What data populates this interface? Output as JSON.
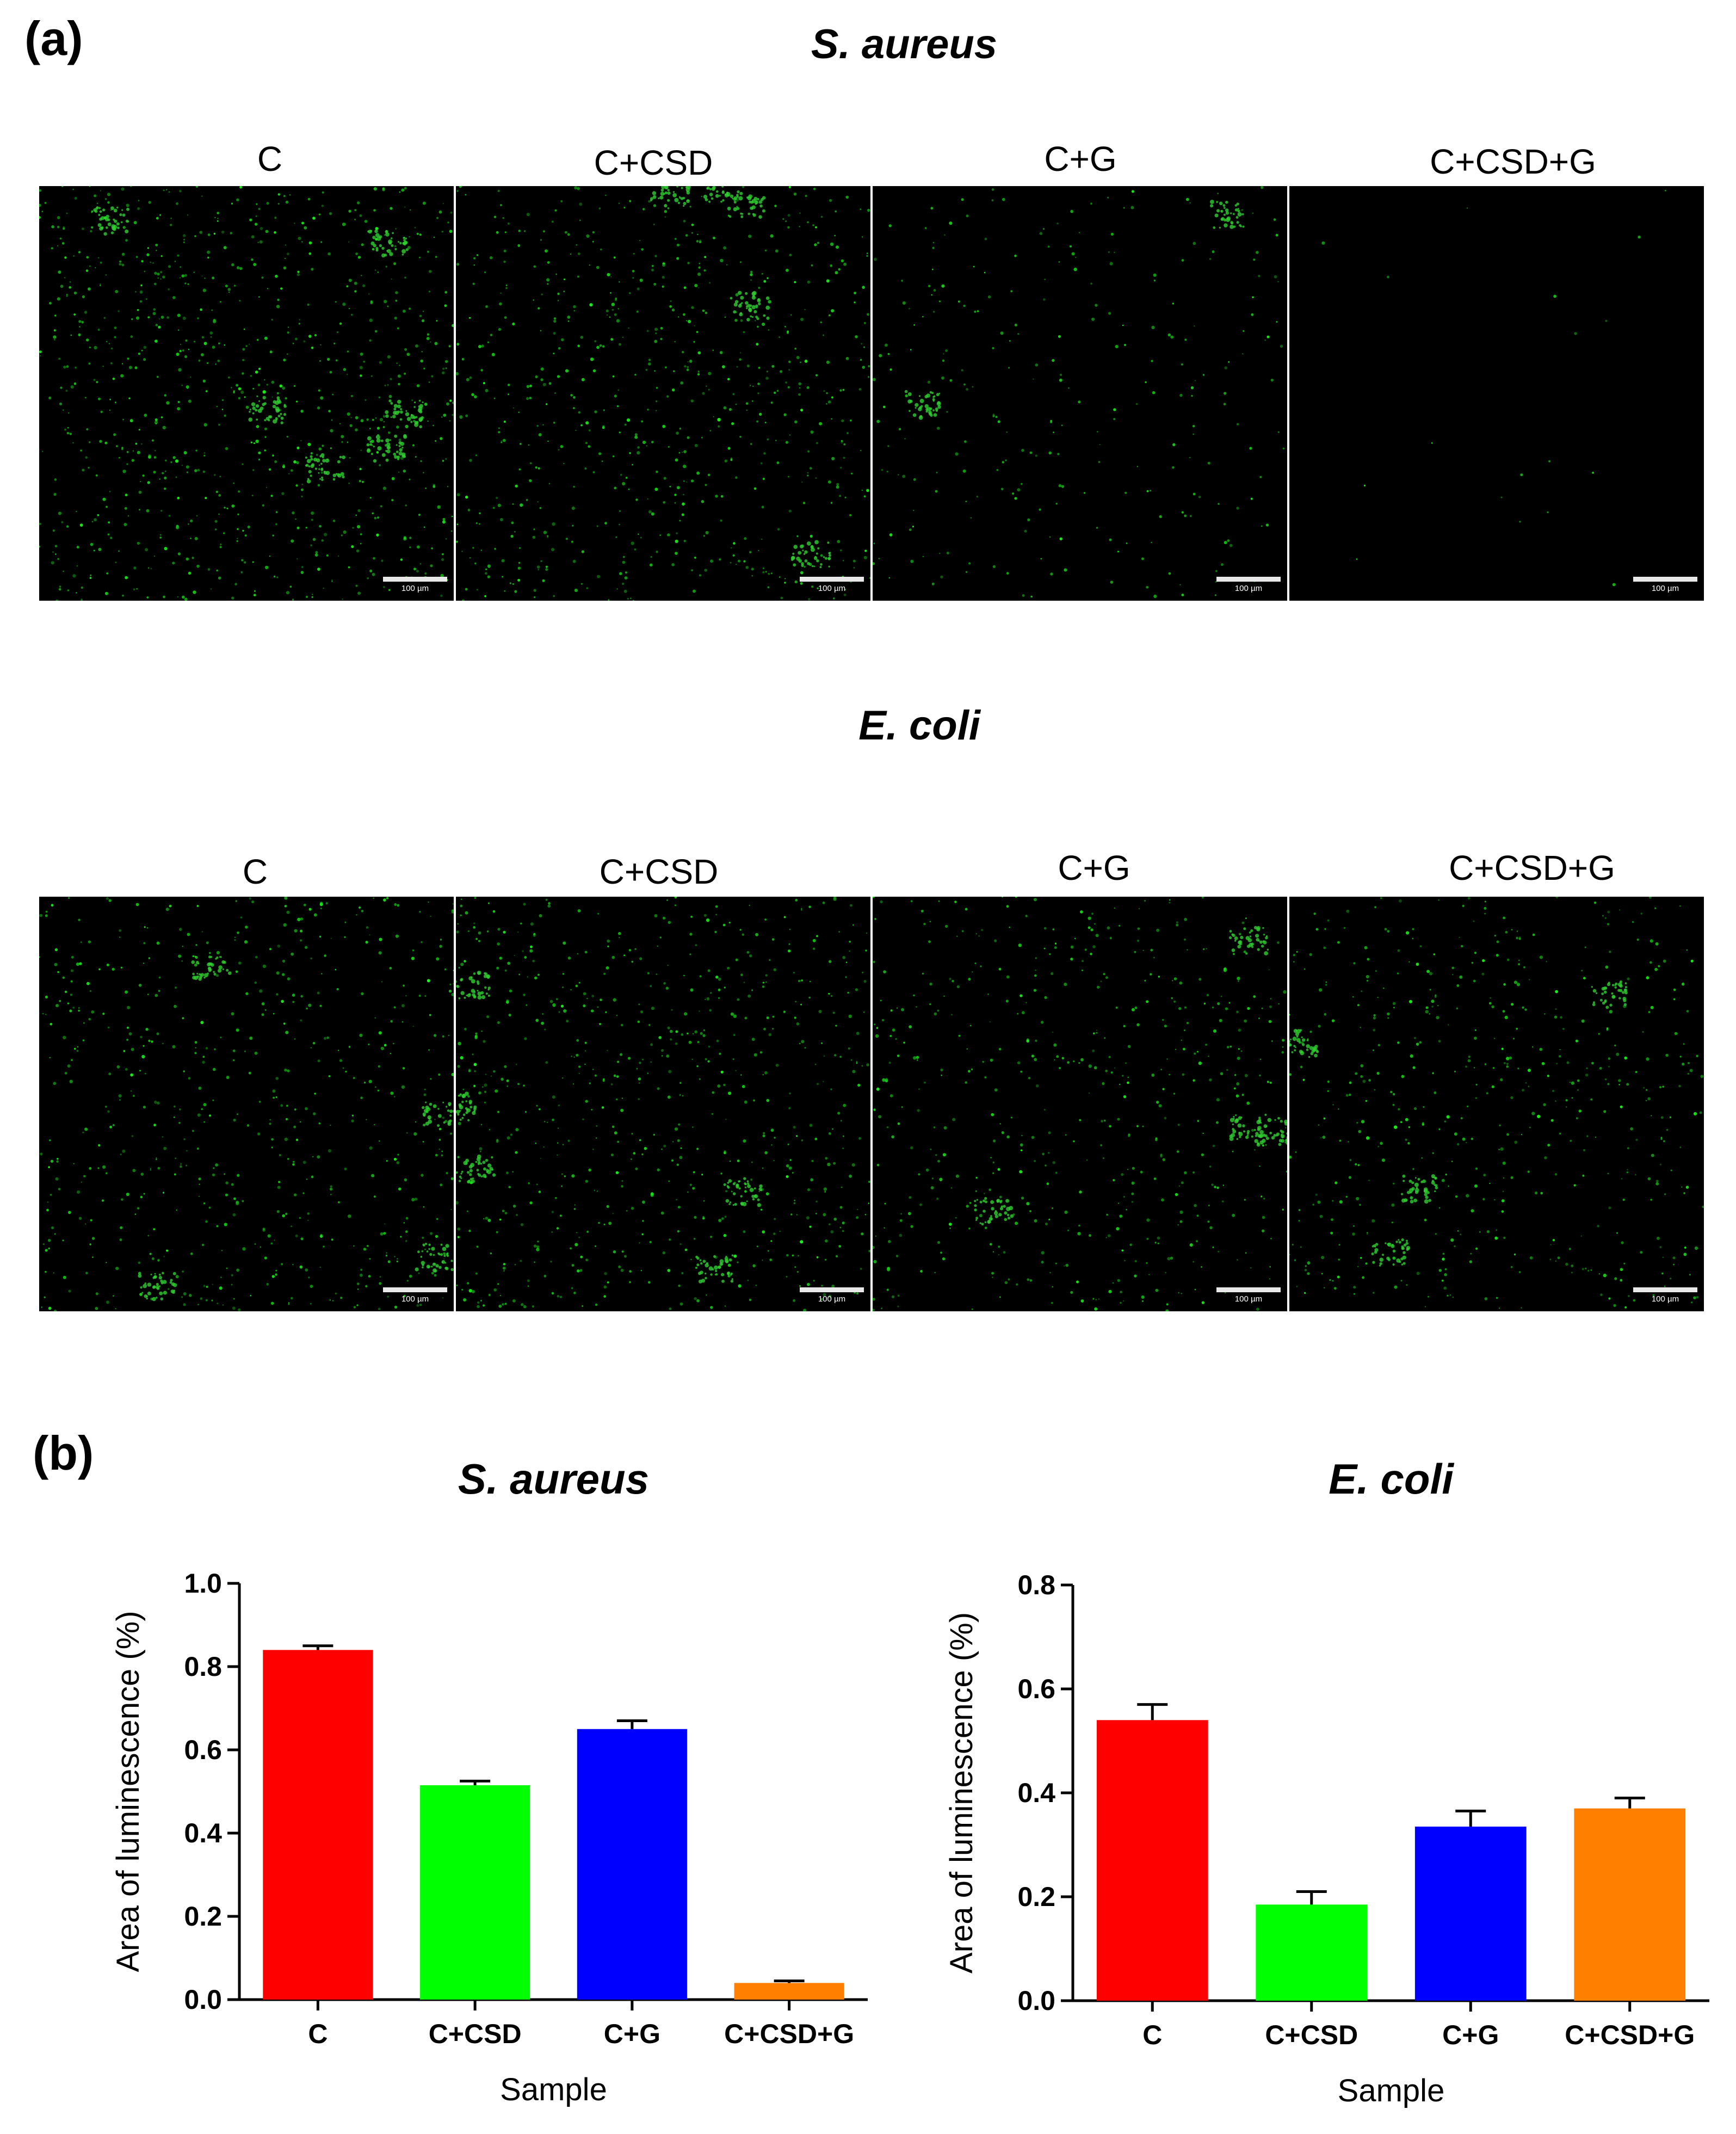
{
  "panel_a": {
    "label": "(a)",
    "rows": [
      {
        "organism": "S. aureus",
        "titles": [
          "C",
          "C+CSD",
          "C+G",
          "C+CSD+G"
        ],
        "density": [
          1.0,
          0.8,
          0.3,
          0.02
        ],
        "scale_label": "100 µm"
      },
      {
        "organism": "E. coli",
        "titles": [
          "C",
          "C+CSD",
          "C+G",
          "C+CSD+G"
        ],
        "density": [
          0.7,
          0.8,
          0.6,
          0.6
        ],
        "scale_label": "100 µm"
      }
    ]
  },
  "panel_b": {
    "label": "(b)"
  },
  "chart_data": [
    {
      "type": "bar",
      "title": "S. aureus",
      "categories": [
        "C",
        "C+CSD",
        "C+G",
        "C+CSD+G"
      ],
      "values": [
        0.84,
        0.515,
        0.65,
        0.04
      ],
      "errors": [
        0.01,
        0.01,
        0.02,
        0.005
      ],
      "colors": [
        "#ff0000",
        "#00ff00",
        "#0000ff",
        "#ff8000"
      ],
      "xlabel": "Sample",
      "ylabel": "Area of luminescence (%)",
      "ylim": [
        0,
        1.0
      ],
      "yticks": [
        "0.0",
        "0.2",
        "0.4",
        "0.6",
        "0.8",
        "1.0"
      ]
    },
    {
      "type": "bar",
      "title": "E. coli",
      "categories": [
        "C",
        "C+CSD",
        "C+G",
        "C+CSD+G"
      ],
      "values": [
        0.54,
        0.185,
        0.335,
        0.37
      ],
      "errors": [
        0.03,
        0.025,
        0.03,
        0.02
      ],
      "colors": [
        "#ff0000",
        "#00ff00",
        "#0000ff",
        "#ff8000"
      ],
      "xlabel": "Sample",
      "ylabel": "Area of luminescence (%)",
      "ylim": [
        0,
        0.8
      ],
      "yticks": [
        "0.0",
        "0.2",
        "0.4",
        "0.6",
        "0.8"
      ]
    }
  ]
}
